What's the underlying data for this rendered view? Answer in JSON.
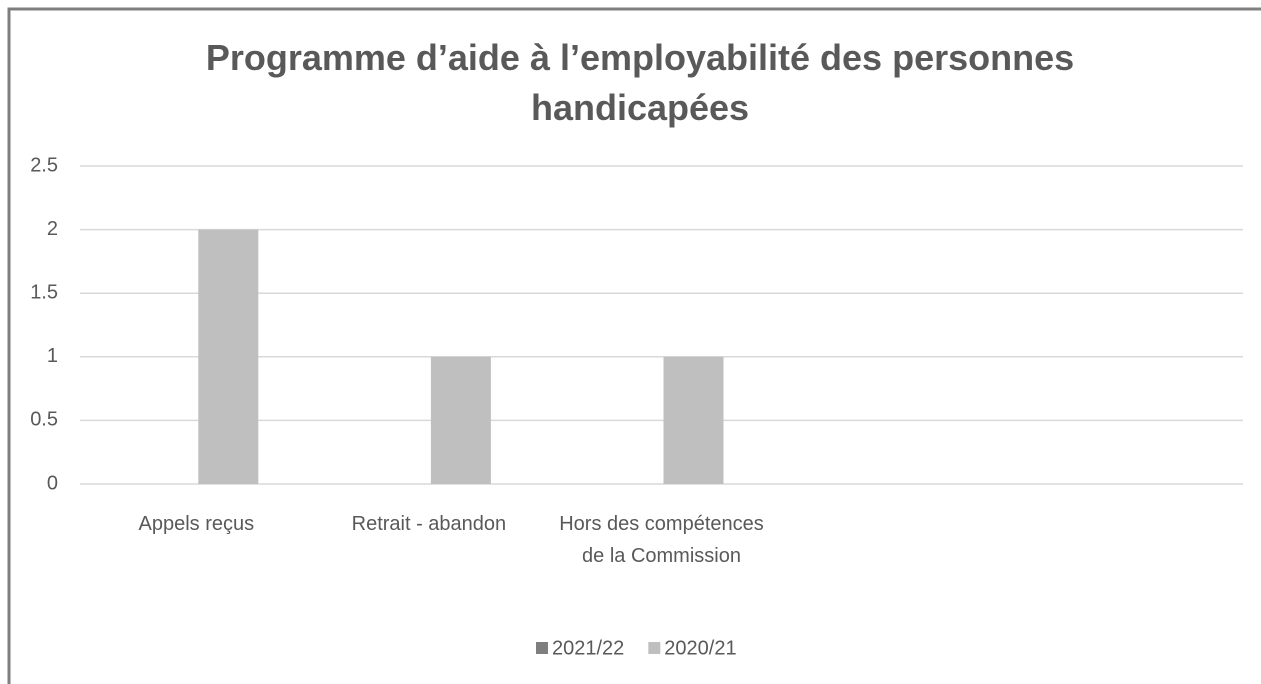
{
  "chart_data": {
    "type": "bar",
    "title": "Programme d’aide à l’employabilité des personnes handicapées",
    "categories": [
      "Appels reçus",
      "Retrait - abandon",
      "Hors des compétences de la Commission",
      null,
      null
    ],
    "series": [
      {
        "name": "2021/22",
        "color": "#7f7f7f",
        "values": [
          0,
          0,
          0,
          0,
          0
        ]
      },
      {
        "name": "2020/21",
        "color": "#bfbfbf",
        "values": [
          2,
          1,
          1,
          0,
          0
        ]
      }
    ],
    "ylim": [
      0,
      2.5
    ],
    "yticks": [
      0,
      0.5,
      1,
      1.5,
      2,
      2.5
    ],
    "grid": true,
    "legend": "bottom"
  }
}
